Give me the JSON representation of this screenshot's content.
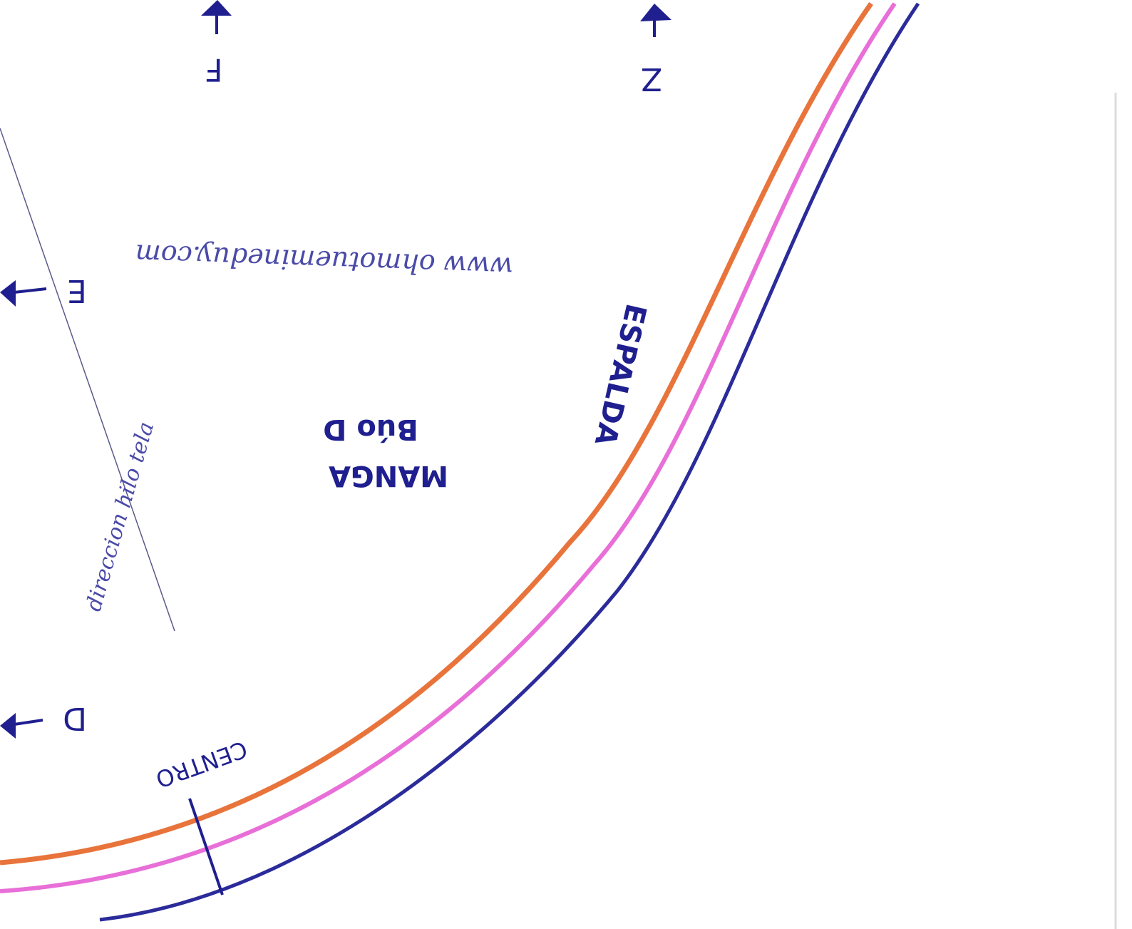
{
  "labels": {
    "top_left": "F",
    "top_right": "Z",
    "left_middle": "E",
    "left_bottom": "D"
  },
  "url": "www ohmotuemineduy.com",
  "grain": "direccion hilo tela",
  "piece": {
    "name": "MANGA",
    "sub": "Búo D"
  },
  "back": "ESPALDA",
  "center": "CENTRO"
}
